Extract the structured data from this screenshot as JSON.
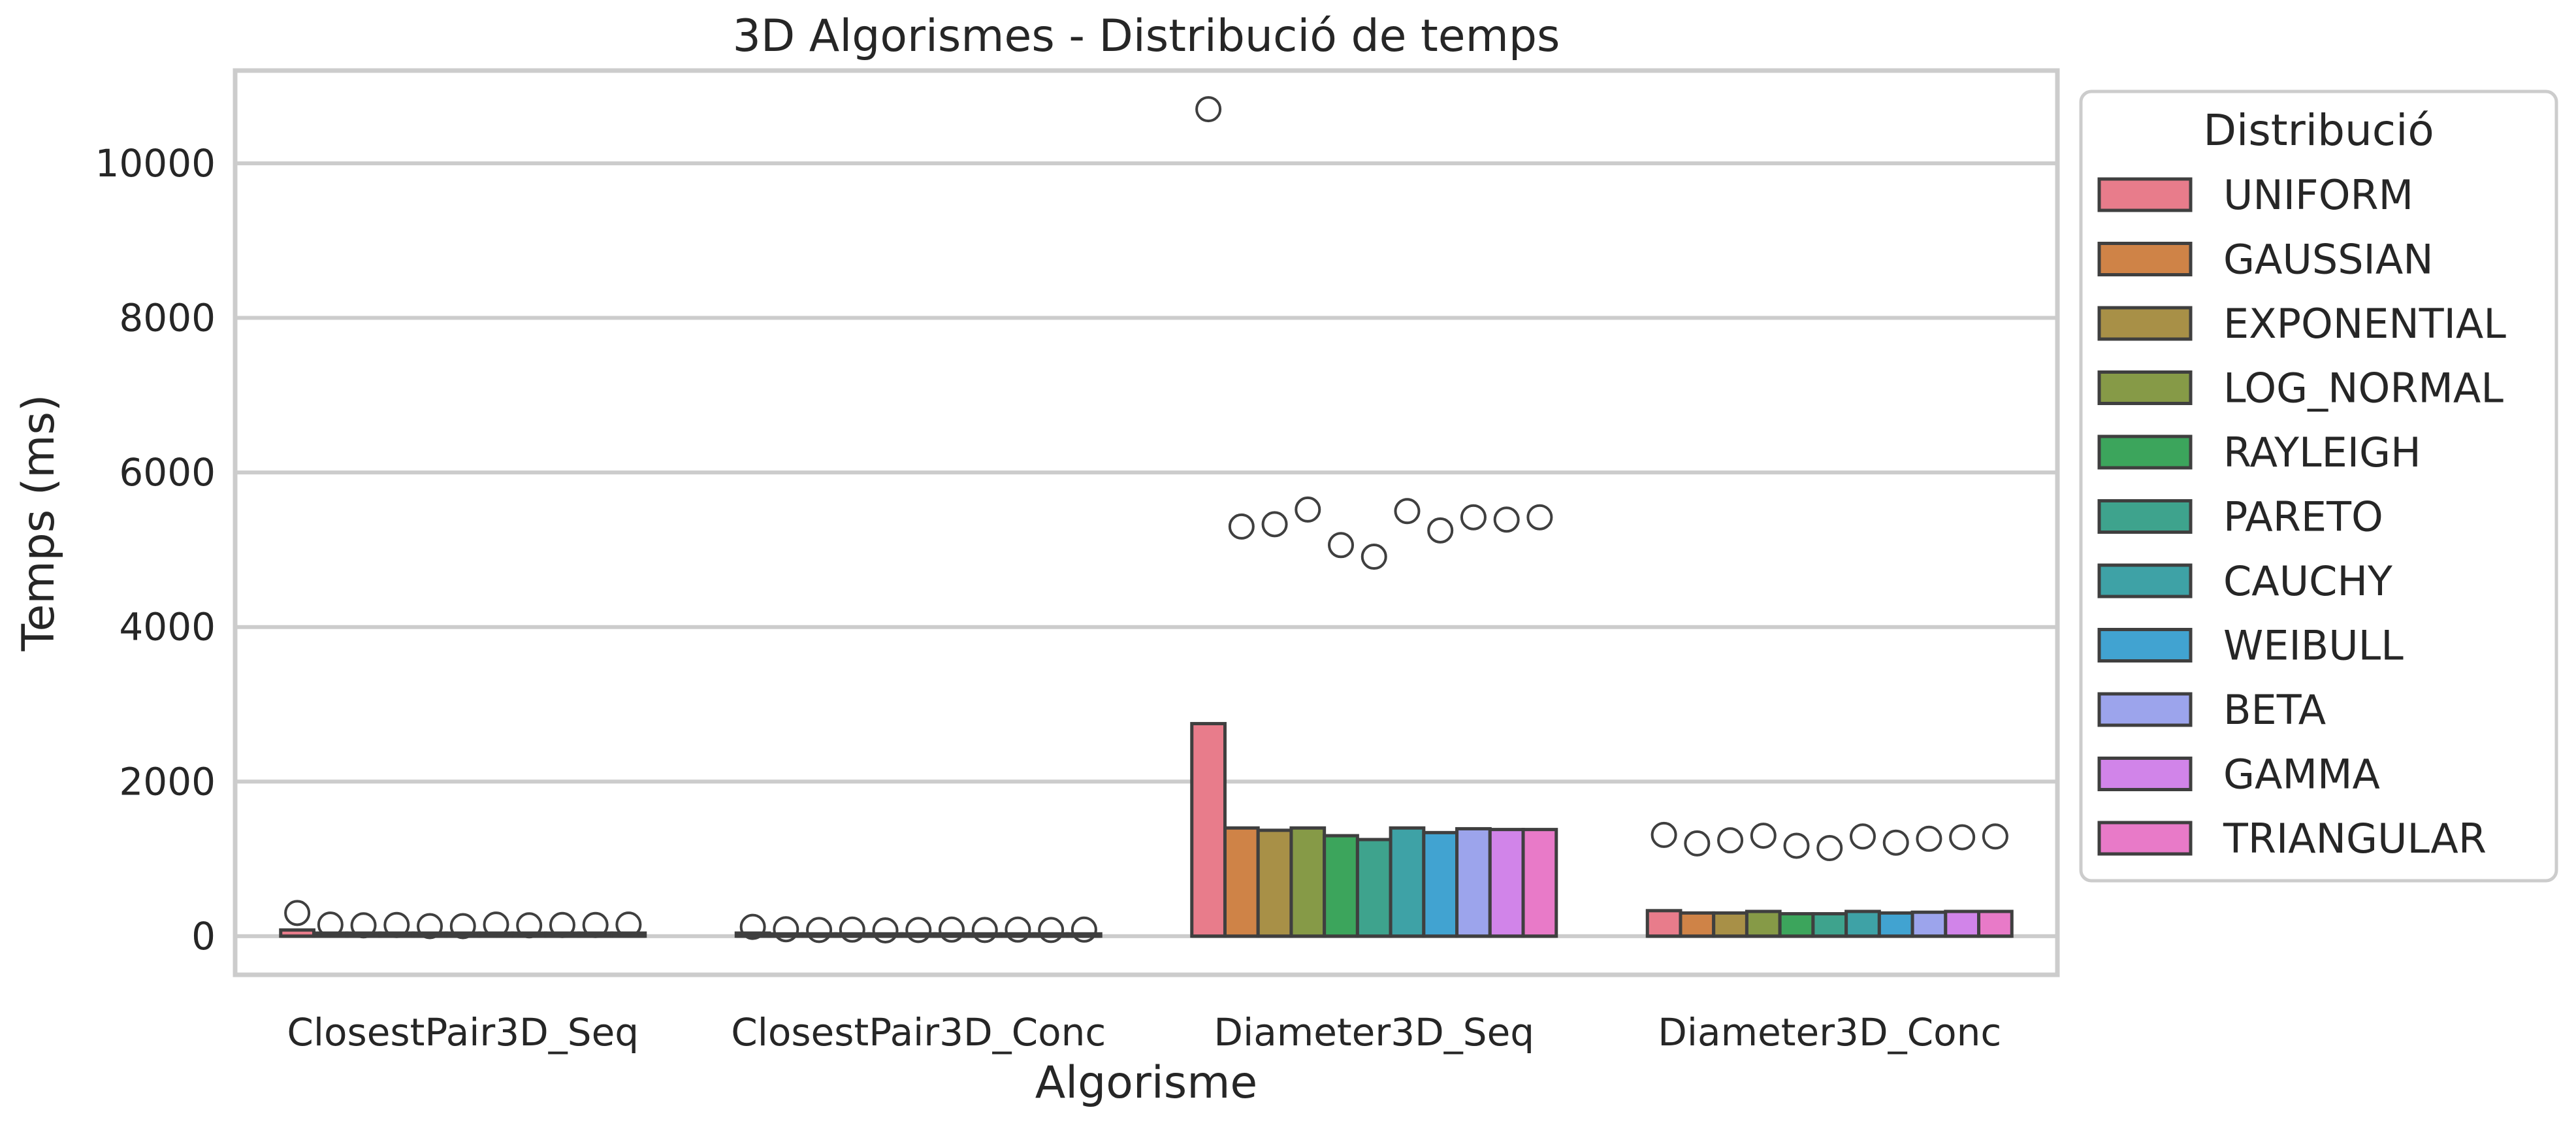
{
  "chart_data": {
    "type": "box",
    "title": "3D Algorismes - Distribució de temps",
    "xlabel": "Algorisme",
    "ylabel": "Temps (ms)",
    "ylim": [
      -500,
      11200
    ],
    "yticks": [
      0,
      2000,
      4000,
      6000,
      8000,
      10000
    ],
    "grid": true,
    "legend_title": "Distribució",
    "legend_placement": "outside-right",
    "categories": [
      "ClosestPair3D_Seq",
      "ClosestPair3D_Conc",
      "Diameter3D_Seq",
      "Diameter3D_Conc"
    ],
    "series": [
      {
        "name": "UNIFORM",
        "color": "#e87c8b",
        "box_top": [
          80,
          40,
          2750,
          330
        ],
        "outliers": [
          [
            300
          ],
          [
            120
          ],
          [
            10700
          ],
          [
            1310
          ]
        ]
      },
      {
        "name": "GAUSSIAN",
        "color": "#cf8347",
        "box_top": [
          40,
          30,
          1400,
          300
        ],
        "outliers": [
          [
            150
          ],
          [
            90
          ],
          [
            5300
          ],
          [
            1200
          ]
        ]
      },
      {
        "name": "EXPONENTIAL",
        "color": "#a89047",
        "box_top": [
          40,
          30,
          1370,
          300
        ],
        "outliers": [
          [
            140
          ],
          [
            80
          ],
          [
            5330
          ],
          [
            1240
          ]
        ]
      },
      {
        "name": "LOG_NORMAL",
        "color": "#869a47",
        "box_top": [
          40,
          30,
          1400,
          320
        ],
        "outliers": [
          [
            145
          ],
          [
            85
          ],
          [
            5520
          ],
          [
            1300
          ]
        ]
      },
      {
        "name": "RAYLEIGH",
        "color": "#3ca55c",
        "box_top": [
          40,
          30,
          1300,
          290
        ],
        "outliers": [
          [
            130
          ],
          [
            75
          ],
          [
            5060
          ],
          [
            1170
          ]
        ]
      },
      {
        "name": "PARETO",
        "color": "#3ea38d",
        "box_top": [
          40,
          30,
          1250,
          290
        ],
        "outliers": [
          [
            130
          ],
          [
            80
          ],
          [
            4910
          ],
          [
            1140
          ]
        ]
      },
      {
        "name": "CAUCHY",
        "color": "#3ea2a6",
        "box_top": [
          40,
          30,
          1400,
          320
        ],
        "outliers": [
          [
            150
          ],
          [
            85
          ],
          [
            5500
          ],
          [
            1290
          ]
        ]
      },
      {
        "name": "WEIBULL",
        "color": "#41a3d1",
        "box_top": [
          40,
          30,
          1340,
          300
        ],
        "outliers": [
          [
            140
          ],
          [
            80
          ],
          [
            5250
          ],
          [
            1210
          ]
        ]
      },
      {
        "name": "BETA",
        "color": "#9ca4ec",
        "box_top": [
          40,
          30,
          1390,
          310
        ],
        "outliers": [
          [
            145
          ],
          [
            85
          ],
          [
            5420
          ],
          [
            1260
          ]
        ]
      },
      {
        "name": "GAMMA",
        "color": "#d184e9",
        "box_top": [
          40,
          30,
          1380,
          320
        ],
        "outliers": [
          [
            145
          ],
          [
            80
          ],
          [
            5390
          ],
          [
            1280
          ]
        ]
      },
      {
        "name": "TRIANGULAR",
        "color": "#e87ac8",
        "box_top": [
          40,
          30,
          1380,
          320
        ],
        "outliers": [
          [
            150
          ],
          [
            85
          ],
          [
            5420
          ],
          [
            1290
          ]
        ]
      }
    ]
  }
}
